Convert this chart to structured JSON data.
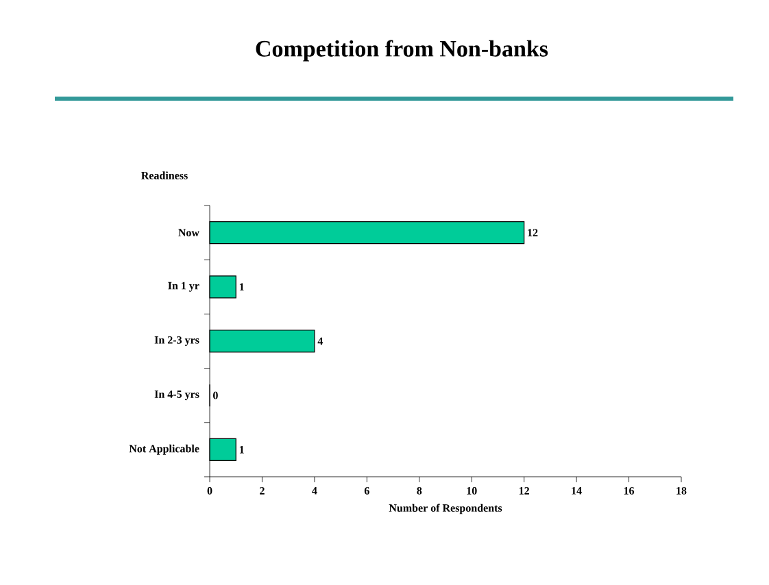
{
  "chart_data": {
    "type": "bar",
    "orientation": "horizontal",
    "title": "Competition from Non-banks",
    "ylabel": "Readiness",
    "xlabel": "Number of Respondents",
    "categories": [
      "Now",
      "In 1 yr",
      "In 2-3 yrs",
      "In 4-5 yrs",
      "Not Applicable"
    ],
    "values": [
      12,
      1,
      4,
      0,
      1
    ],
    "color": "#00cc99",
    "data_labels": true,
    "xlim": [
      0,
      18
    ],
    "xticks": [
      0,
      2,
      4,
      6,
      8,
      10,
      12,
      14,
      16,
      18
    ],
    "grid": false
  }
}
